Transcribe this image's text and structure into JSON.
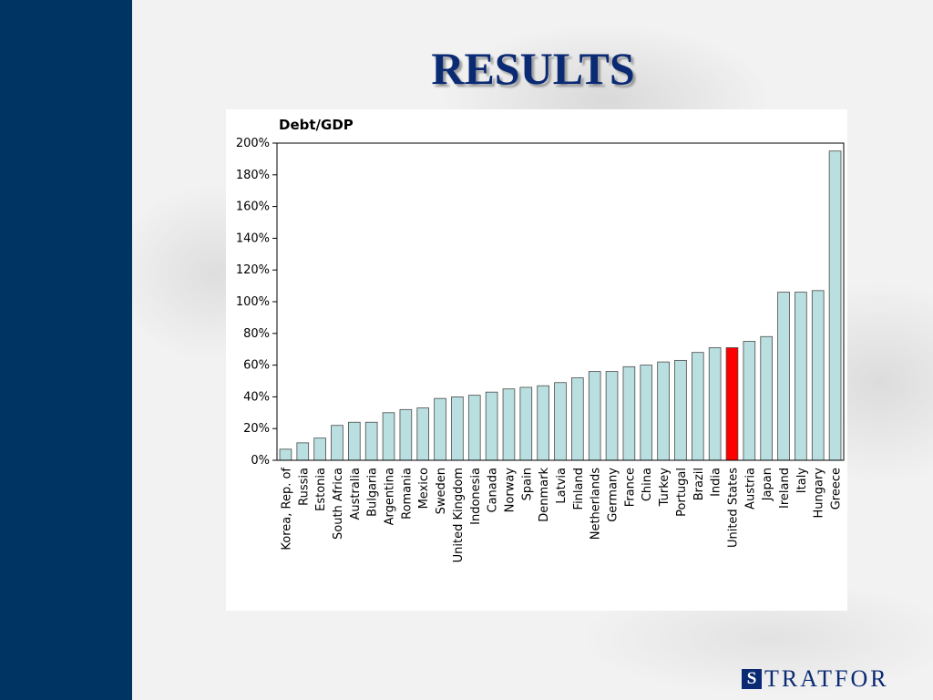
{
  "slide": {
    "title": "RESULTS",
    "logo_mark": "S",
    "logo_text": "TRATFOR"
  },
  "colors": {
    "sidebar": "#003563",
    "title": "#0a2a73",
    "bar_default": "#b9dfe0",
    "bar_highlight": "#ff0000"
  },
  "chart_data": {
    "type": "bar",
    "title": "Debt/GDP",
    "xlabel": "",
    "ylabel": "",
    "ylim": [
      0,
      200
    ],
    "yticks": [
      "0%",
      "20%",
      "40%",
      "60%",
      "80%",
      "100%",
      "120%",
      "140%",
      "160%",
      "180%",
      "200%"
    ],
    "categories": [
      "Korea, Rep. of",
      "Russia",
      "Estonia",
      "South Africa",
      "Australia",
      "Bulgaria",
      "Argentina",
      "Romania",
      "Mexico",
      "Sweden",
      "United Kingdom",
      "Indonesia",
      "Canada",
      "Norway",
      "Spain",
      "Denmark",
      "Latvia",
      "Finland",
      "Netherlands",
      "Germany",
      "France",
      "China",
      "Turkey",
      "Portugal",
      "Brazil",
      "India",
      "United States",
      "Austria",
      "Japan",
      "Ireland",
      "Italy",
      "Hungary",
      "Greece"
    ],
    "values": [
      7,
      11,
      14,
      22,
      24,
      24,
      30,
      32,
      33,
      39,
      40,
      41,
      43,
      45,
      46,
      47,
      49,
      52,
      56,
      56,
      59,
      60,
      62,
      63,
      68,
      71,
      71,
      75,
      78,
      106,
      106,
      107,
      195
    ],
    "highlight": "United States",
    "grid": false,
    "legend": "none"
  }
}
